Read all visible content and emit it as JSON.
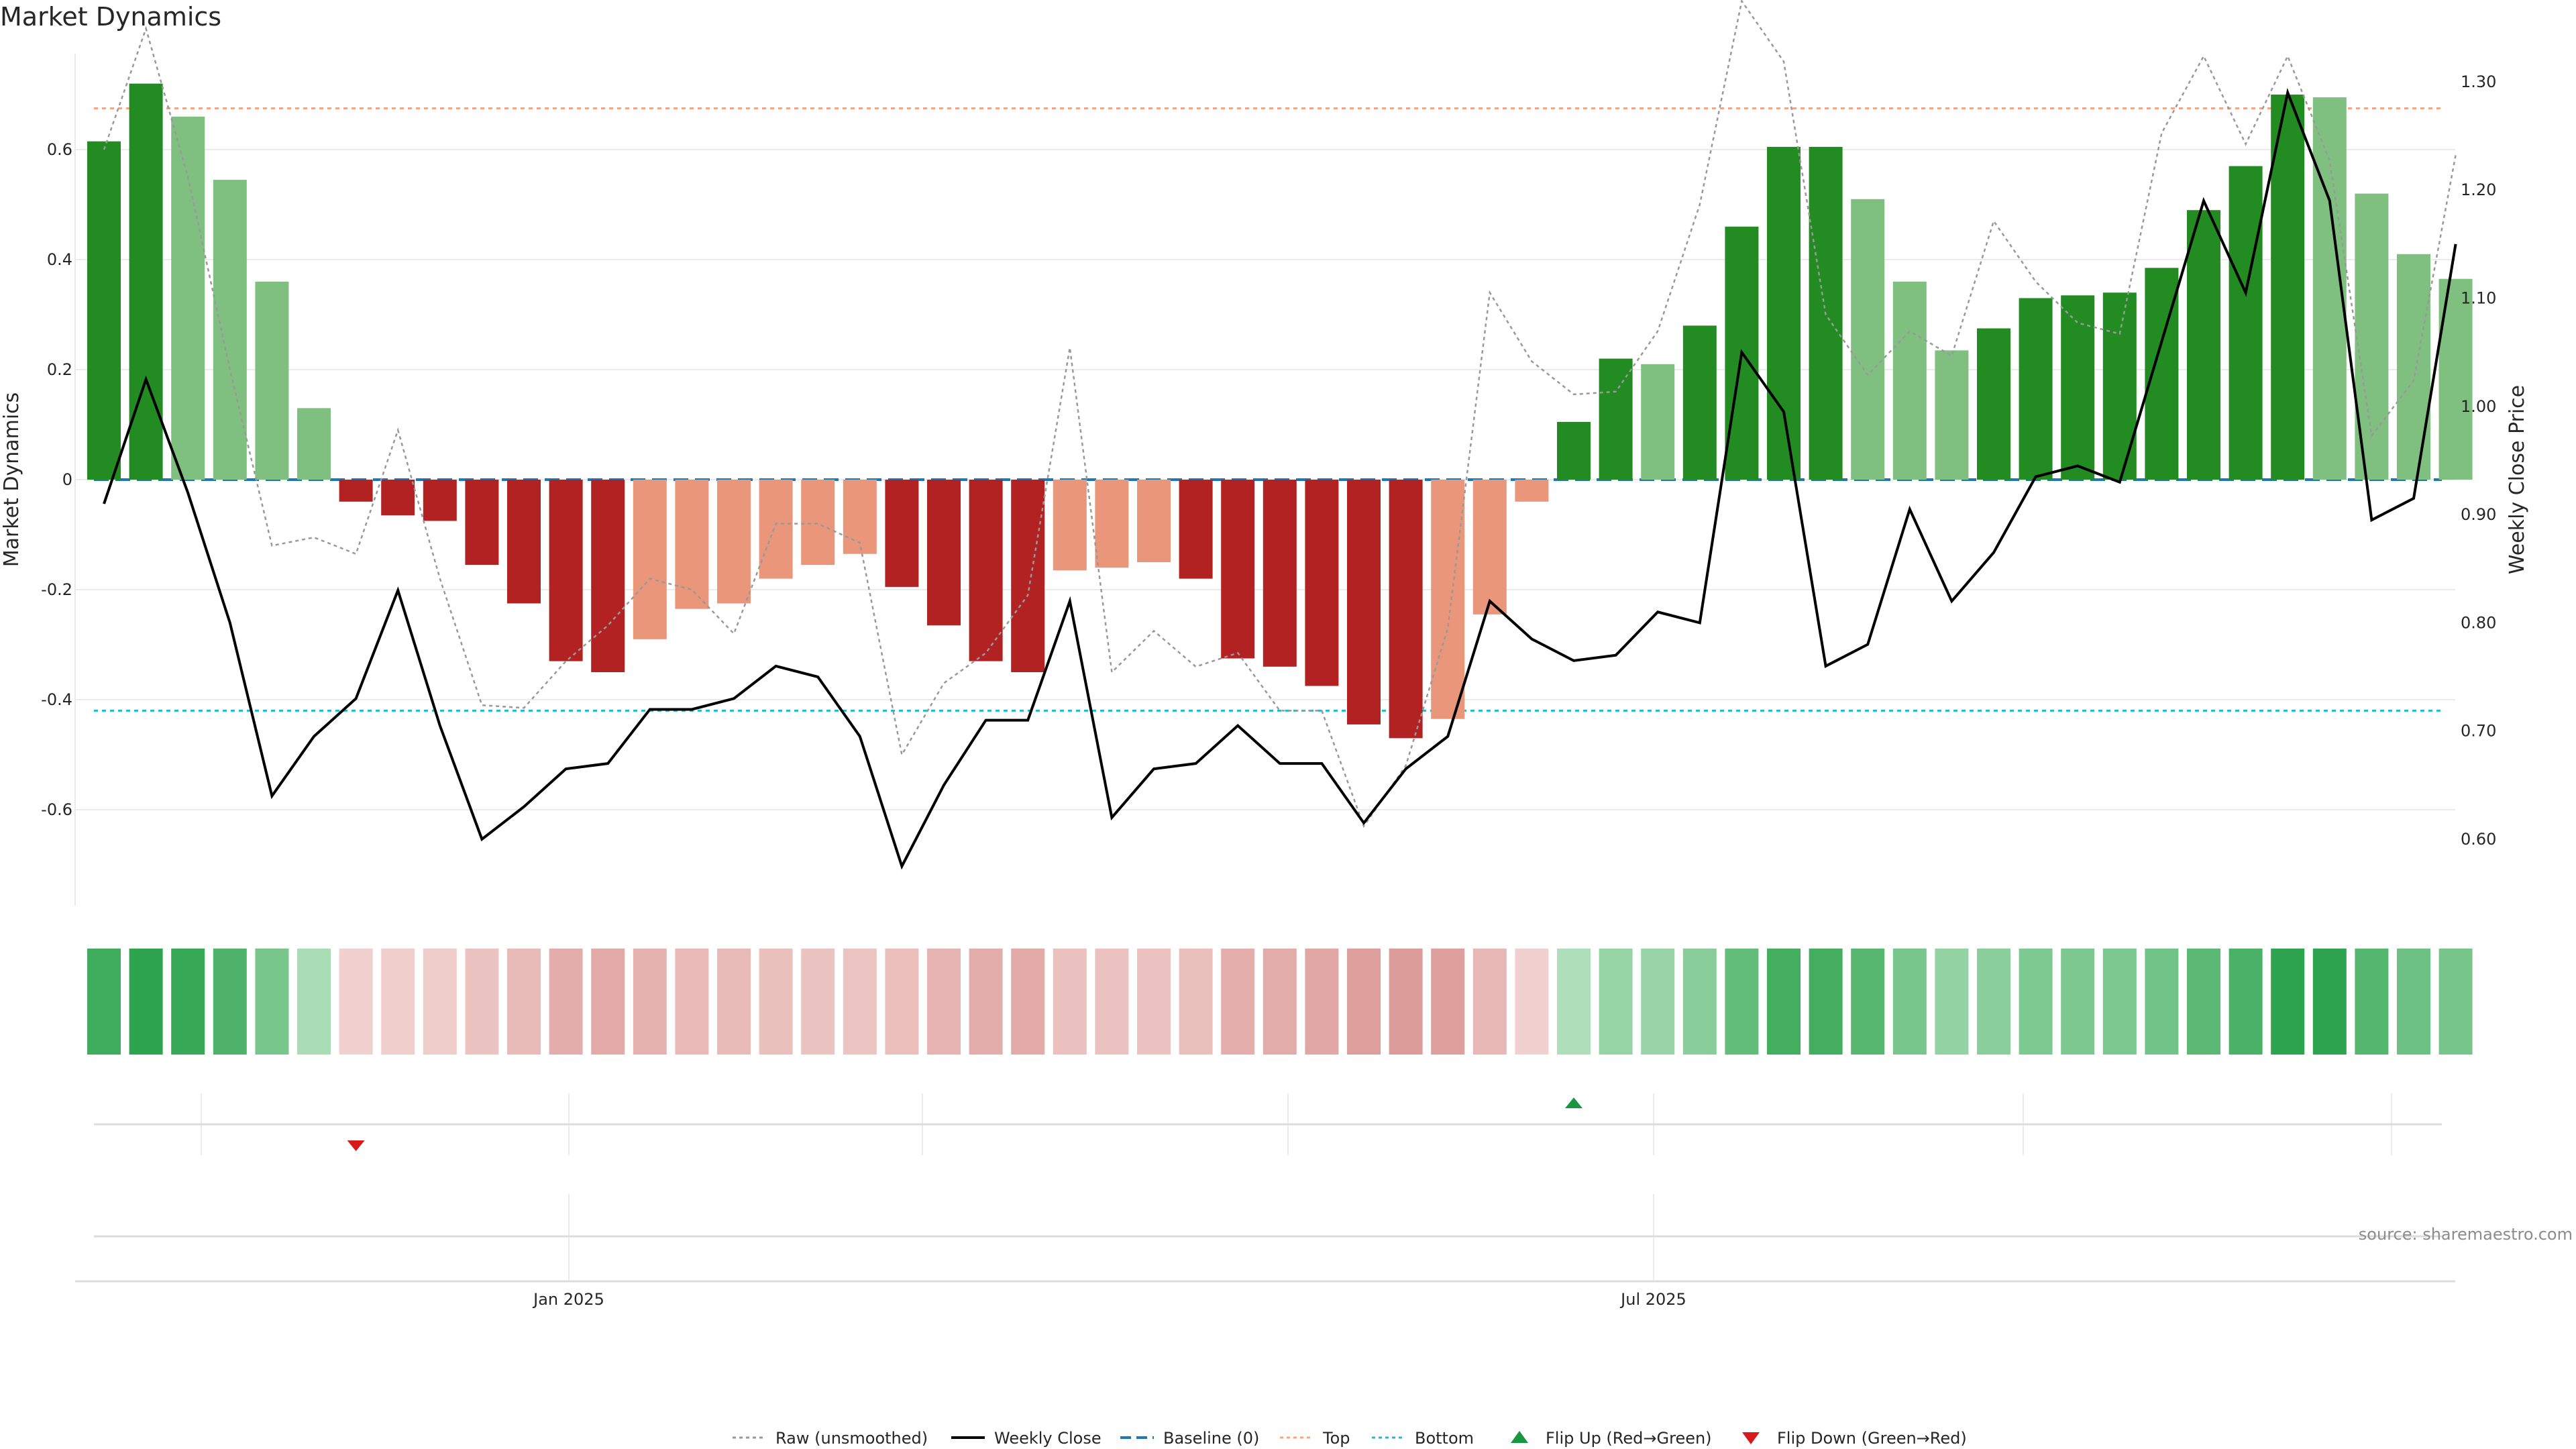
{
  "chart_data": {
    "type": "bar",
    "title": "Market Dynamics",
    "ylabel_left": "Market Dynamics",
    "ylabel_right": "Weekly Close Price",
    "xlabel": "",
    "x_tick_labels": [
      "Jan 2025",
      "Jul 2025"
    ],
    "y_ticks_left": [
      -0.6,
      -0.4,
      -0.2,
      0,
      0.2,
      0.4,
      0.6
    ],
    "y_tick_labels_left": [
      "-0.6",
      "-0.4",
      "-0.2",
      "0",
      "0.2",
      "0.4",
      "0.6"
    ],
    "ylim_left": [
      -0.78,
      0.78
    ],
    "y_ticks_right": [
      0.6,
      0.7,
      0.8,
      0.9,
      1.0,
      1.1,
      1.2,
      1.3
    ],
    "y_tick_labels_right": [
      "0.60",
      "0.70",
      "0.80",
      "0.90",
      "1.00",
      "1.10",
      "1.20",
      "1.30"
    ],
    "ylim_right": [
      0.53,
      1.325
    ],
    "legend_position": "bottom-center",
    "grid": true,
    "source": "source: sharemaestro.com",
    "bar_colors": {
      "strong_up": "#228b22",
      "weak_up": "#7fbf7f",
      "strong_down": "#b22222",
      "weak_down": "#e9967a"
    },
    "bars": {
      "name": "Market Dynamics",
      "values": [
        0.615,
        0.72,
        0.66,
        0.545,
        0.36,
        0.13,
        -0.04,
        -0.065,
        -0.075,
        -0.155,
        -0.225,
        -0.33,
        -0.35,
        -0.29,
        -0.235,
        -0.225,
        -0.18,
        -0.155,
        -0.135,
        -0.195,
        -0.265,
        -0.33,
        -0.35,
        -0.165,
        -0.16,
        -0.15,
        -0.18,
        -0.325,
        -0.34,
        -0.375,
        -0.445,
        -0.47,
        -0.435,
        -0.245,
        -0.04,
        0.105,
        0.22,
        0.21,
        0.28,
        0.46,
        0.605,
        0.605,
        0.51,
        0.36,
        0.235,
        0.275,
        0.33,
        0.335,
        0.34,
        0.385,
        0.49,
        0.57,
        0.7,
        0.695,
        0.52,
        0.41,
        0.365
      ],
      "strength": [
        "strong",
        "strong",
        "weak",
        "weak",
        "weak",
        "weak",
        "strong",
        "strong",
        "strong",
        "strong",
        "strong",
        "strong",
        "strong",
        "weak",
        "weak",
        "weak",
        "weak",
        "weak",
        "weak",
        "strong",
        "strong",
        "strong",
        "strong",
        "weak",
        "weak",
        "weak",
        "strong",
        "strong",
        "strong",
        "strong",
        "strong",
        "strong",
        "weak",
        "weak",
        "weak",
        "strong",
        "strong",
        "weak",
        "strong",
        "strong",
        "strong",
        "strong",
        "weak",
        "weak",
        "weak",
        "strong",
        "strong",
        "strong",
        "strong",
        "strong",
        "strong",
        "strong",
        "strong",
        "weak",
        "weak",
        "weak",
        "weak"
      ]
    },
    "raw_unsmoothed": {
      "name": "Raw (unsmoothed)",
      "values": [
        0.6,
        0.82,
        0.55,
        0.2,
        -0.12,
        -0.105,
        -0.135,
        0.09,
        -0.18,
        -0.41,
        -0.415,
        -0.33,
        -0.265,
        -0.18,
        -0.2,
        -0.28,
        -0.08,
        -0.08,
        -0.115,
        -0.5,
        -0.37,
        -0.315,
        -0.21,
        0.24,
        -0.35,
        -0.275,
        -0.34,
        -0.315,
        -0.42,
        -0.42,
        -0.63,
        -0.52,
        -0.27,
        0.34,
        0.215,
        0.155,
        0.16,
        0.27,
        0.5,
        0.87,
        0.76,
        0.3,
        0.19,
        0.27,
        0.225,
        0.47,
        0.36,
        0.285,
        0.265,
        0.63,
        0.77,
        0.61,
        0.77,
        0.58,
        0.08,
        0.18,
        0.59
      ]
    },
    "weekly_close": {
      "name": "Weekly Close",
      "values": [
        0.91,
        1.025,
        0.92,
        0.8,
        0.64,
        0.695,
        0.73,
        0.83,
        0.705,
        0.6,
        0.63,
        0.665,
        0.67,
        0.72,
        0.72,
        0.73,
        0.76,
        0.75,
        0.695,
        0.575,
        0.65,
        0.71,
        0.71,
        0.82,
        0.62,
        0.665,
        0.67,
        0.705,
        0.67,
        0.67,
        0.615,
        0.665,
        0.695,
        0.82,
        0.785,
        0.765,
        0.77,
        0.81,
        0.8,
        1.05,
        0.995,
        0.76,
        0.78,
        0.905,
        0.82,
        0.865,
        0.935,
        0.945,
        0.93,
        1.06,
        1.19,
        1.105,
        1.29,
        1.19,
        0.895,
        0.915,
        1.15
      ]
    },
    "baseline": {
      "name": "Baseline (0)",
      "value": 0
    },
    "top": {
      "name": "Top",
      "value": 0.675
    },
    "bottom": {
      "name": "Bottom",
      "value": -0.42
    },
    "heat_strip_values": [
      0.615,
      0.72,
      0.66,
      0.545,
      0.36,
      0.13,
      -0.04,
      -0.065,
      -0.075,
      -0.155,
      -0.225,
      -0.33,
      -0.35,
      -0.29,
      -0.235,
      -0.225,
      -0.18,
      -0.155,
      -0.135,
      -0.195,
      -0.265,
      -0.33,
      -0.35,
      -0.165,
      -0.16,
      -0.15,
      -0.18,
      -0.325,
      -0.34,
      -0.375,
      -0.445,
      -0.47,
      -0.435,
      -0.245,
      -0.04,
      0.105,
      0.22,
      0.21,
      0.28,
      0.46,
      0.605,
      0.605,
      0.51,
      0.36,
      0.235,
      0.275,
      0.33,
      0.335,
      0.34,
      0.385,
      0.49,
      0.57,
      0.7,
      0.695,
      0.52,
      0.41,
      0.365
    ],
    "flip_up": {
      "name": "Flip Up (Red→Green)",
      "color": "#1a9641",
      "index": 35
    },
    "flip_down": {
      "name": "Flip Down (Green→Red)",
      "color": "#d7191c",
      "index": 6
    },
    "legend": [
      {
        "label": "Raw (unsmoothed)",
        "style": "dotted-gray"
      },
      {
        "label": "Weekly Close",
        "style": "solid-black"
      },
      {
        "label": "Baseline (0)",
        "style": "dashed-blue"
      },
      {
        "label": "Top",
        "style": "dotted-orange"
      },
      {
        "label": "Bottom",
        "style": "dotted-cyan"
      },
      {
        "label": "Flip Up (Red→Green)",
        "style": "triangle-up-green"
      },
      {
        "label": "Flip Down (Green→Red)",
        "style": "triangle-down-red"
      }
    ]
  }
}
